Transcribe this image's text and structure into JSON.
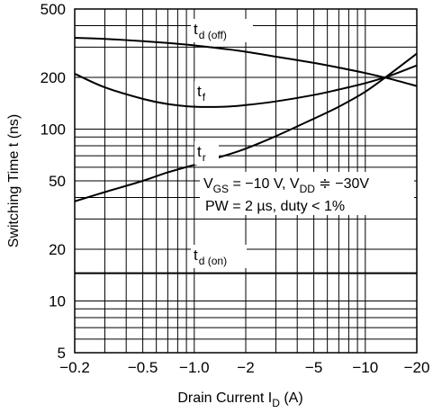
{
  "chart_data": {
    "type": "line",
    "scale": {
      "x": "log",
      "y": "log"
    },
    "xlabel": {
      "main": "Drain Current  I",
      "sub": "D",
      "unit": "  (A)"
    },
    "ylabel": "Switching Time  t  (ns)",
    "xlim": [
      -0.2,
      -20
    ],
    "ylim": [
      5,
      500
    ],
    "x_ticks": [
      {
        "value": -0.2,
        "label": "−0.2"
      },
      {
        "value": -0.5,
        "label": "−0.5"
      },
      {
        "value": -1.0,
        "label": "−1.0"
      },
      {
        "value": -2,
        "label": "−2"
      },
      {
        "value": -5,
        "label": "−5"
      },
      {
        "value": -10,
        "label": "−10"
      },
      {
        "value": -20,
        "label": "−20"
      }
    ],
    "y_ticks": [
      {
        "value": 5,
        "label": "5"
      },
      {
        "value": 10,
        "label": "10"
      },
      {
        "value": 20,
        "label": "20"
      },
      {
        "value": 50,
        "label": "50"
      },
      {
        "value": 100,
        "label": "100"
      },
      {
        "value": 200,
        "label": "200"
      },
      {
        "value": 500,
        "label": "500"
      }
    ],
    "grid": true,
    "series": [
      {
        "id": "td_off",
        "label": {
          "main": "t",
          "sub": "d (off)"
        },
        "x": [
          -0.2,
          -0.3,
          -0.5,
          -0.7,
          -1.0,
          -1.5,
          -2,
          -3,
          -5,
          -7,
          -10,
          -14,
          -20
        ],
        "y": [
          340,
          335,
          325,
          317,
          307,
          293,
          282,
          264,
          243,
          228,
          212,
          196,
          178
        ]
      },
      {
        "id": "tf",
        "label": {
          "main": "t",
          "sub": "f"
        },
        "x": [
          -0.2,
          -0.3,
          -0.5,
          -0.7,
          -1.0,
          -1.5,
          -2,
          -3,
          -5,
          -7,
          -10,
          -14,
          -20
        ],
        "y": [
          210,
          175,
          150,
          140,
          135,
          135,
          138,
          145,
          158,
          170,
          185,
          205,
          235
        ]
      },
      {
        "id": "tr",
        "label": {
          "main": "t",
          "sub": "r"
        },
        "x": [
          -0.2,
          -0.3,
          -0.5,
          -0.7,
          -1.0,
          -1.5,
          -2,
          -3,
          -5,
          -7,
          -10,
          -14,
          -20
        ],
        "y": [
          38,
          43,
          50,
          56,
          62,
          70,
          77,
          91,
          115,
          135,
          165,
          210,
          275
        ]
      },
      {
        "id": "td_on",
        "label": {
          "main": "t",
          "sub": "d (on)"
        },
        "x": [
          -0.2,
          -20
        ],
        "y": [
          14.5,
          14.5
        ]
      }
    ],
    "annotations": [
      {
        "id": "conditions-line1",
        "parts": [
          {
            "text": "V",
            "sub": false
          },
          {
            "text": "GS",
            "sub": true
          },
          {
            "text": " = −10 V, V",
            "sub": false
          },
          {
            "text": "DD",
            "sub": true
          },
          {
            "text": " ≑ −30V",
            "sub": false
          }
        ]
      },
      {
        "id": "conditions-line2",
        "text": "PW = 2 µs, duty < 1%"
      }
    ]
  }
}
